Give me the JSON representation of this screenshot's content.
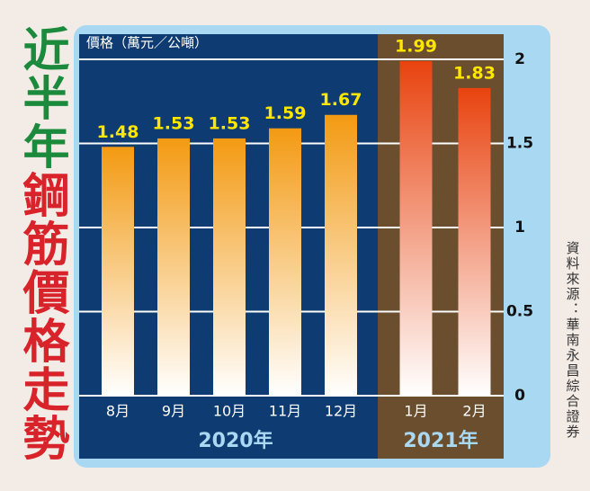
{
  "chart_data": {
    "type": "bar",
    "title": [
      "近半年",
      "鋼筋價格走勢"
    ],
    "title_colors": [
      "#1b8a3c",
      "#d8232a"
    ],
    "y_label": "價格（萬元／公噸）",
    "source": "資料來源：華南永昌綜合證券",
    "groups": [
      {
        "name": "2020年",
        "background": "#0d3b72",
        "color": "#f39a12",
        "categories": [
          "8月",
          "9月",
          "10月",
          "11月",
          "12月"
        ],
        "values": [
          1.48,
          1.53,
          1.53,
          1.59,
          1.67
        ]
      },
      {
        "name": "2021年",
        "background": "#6a4e2e",
        "color": "#e8430f",
        "categories": [
          "1月",
          "2月"
        ],
        "values": [
          1.99,
          1.83
        ]
      }
    ],
    "ylim": [
      0,
      2.15
    ],
    "yticks": [
      0,
      0.5,
      1,
      1.5,
      2
    ],
    "grid": true
  }
}
